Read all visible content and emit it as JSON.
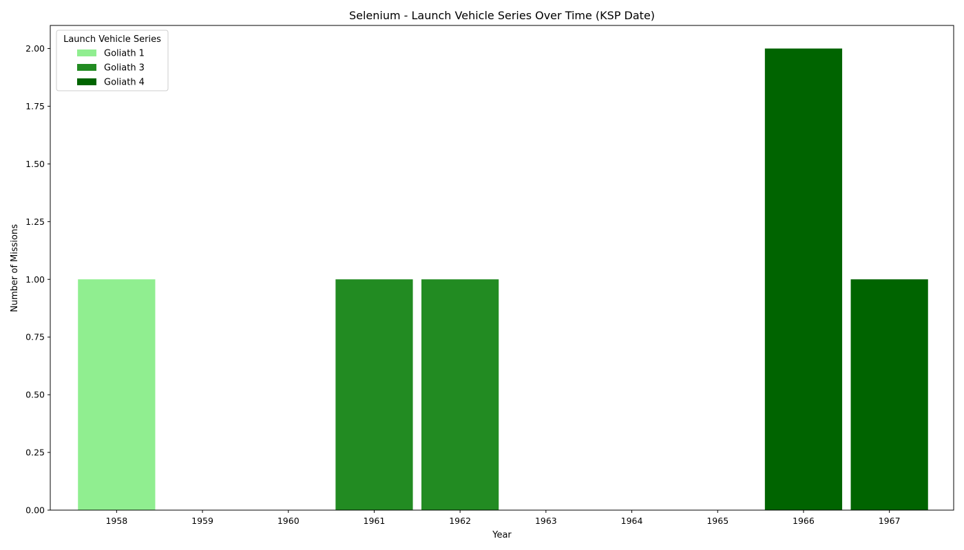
{
  "chart_data": {
    "type": "bar",
    "stacked": true,
    "title": "Selenium - Launch Vehicle Series Over Time (KSP Date)",
    "xlabel": "Year",
    "ylabel": "Number of Missions",
    "categories": [
      "1958",
      "1959",
      "1960",
      "1961",
      "1962",
      "1963",
      "1964",
      "1965",
      "1966",
      "1967"
    ],
    "series": [
      {
        "name": "Goliath 1",
        "color": "#90ee90",
        "values": [
          1,
          0,
          0,
          0,
          0,
          0,
          0,
          0,
          0,
          0
        ]
      },
      {
        "name": "Goliath 3",
        "color": "#228b22",
        "values": [
          0,
          0,
          0,
          1,
          1,
          0,
          0,
          0,
          0,
          0
        ]
      },
      {
        "name": "Goliath 4",
        "color": "#006400",
        "values": [
          0,
          0,
          0,
          0,
          0,
          0,
          0,
          0,
          2,
          1
        ]
      }
    ],
    "ylim": [
      0,
      2.1
    ],
    "yticks": [
      "0.00",
      "0.25",
      "0.50",
      "0.75",
      "1.00",
      "1.25",
      "1.50",
      "1.75",
      "2.00"
    ],
    "legend": {
      "title": "Launch Vehicle Series",
      "placement": "top-left"
    },
    "grid": false
  }
}
